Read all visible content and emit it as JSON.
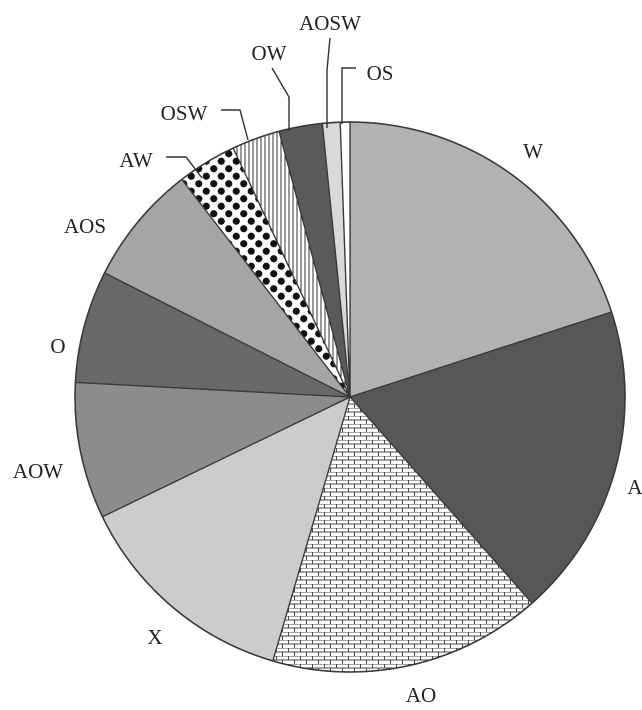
{
  "chart_data": {
    "type": "pie",
    "title": "",
    "start": "12 o'clock",
    "direction": "clockwise",
    "slices": [
      {
        "label": "W",
        "value": 21.2,
        "color": "#b2b2b2",
        "pattern": "solid"
      },
      {
        "label": "A",
        "value": 19.6,
        "color": "#575757",
        "pattern": "solid"
      },
      {
        "label": "AO",
        "value": 17.0,
        "color": "#ffffff",
        "pattern": "brick"
      },
      {
        "label": "X",
        "value": 14.1,
        "color": "#cccccc",
        "pattern": "solid"
      },
      {
        "label": "AOW",
        "value": 8.5,
        "color": "#8c8c8c",
        "pattern": "solid"
      },
      {
        "label": "O",
        "value": 7.0,
        "color": "#686868",
        "pattern": "solid"
      },
      {
        "label": "AOS",
        "value": 7.5,
        "color": "#a5a5a5",
        "pattern": "solid"
      },
      {
        "label": "AW",
        "value": 3.7,
        "color": "#ffffff",
        "pattern": "dots"
      },
      {
        "label": "OSW",
        "value": 3.0,
        "color": "#ffffff",
        "pattern": "vertical-lines"
      },
      {
        "label": "OW",
        "value": 2.7,
        "color": "#5a5a5a",
        "pattern": "solid"
      },
      {
        "label": "AOSW",
        "value": 1.1,
        "color": "#d9d9d9",
        "pattern": "solid"
      },
      {
        "label": "OS",
        "value": 0.6,
        "color": "#ffffff",
        "pattern": "solid"
      }
    ]
  }
}
